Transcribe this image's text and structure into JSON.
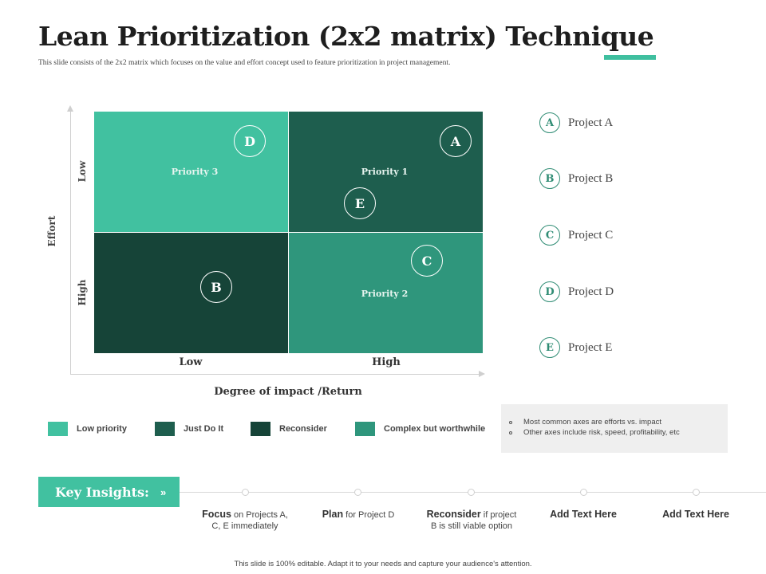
{
  "header": {
    "title": "Lean Prioritization (2x2 matrix) Technique",
    "subtitle": "This slide consists of the 2x2 matrix which focuses on the value and effort concept used to feature prioritization in project management.",
    "accent_color": "#3fbf9f"
  },
  "matrix": {
    "y_axis_title": "Effort",
    "y_tick_low": "Low",
    "y_tick_high": "High",
    "x_axis_title": "Degree of impact /Return",
    "x_tick_low": "Low",
    "x_tick_high": "High",
    "quadrants": {
      "top_left": {
        "label": "Priority 3",
        "color": "#41c1a0"
      },
      "top_right": {
        "label": "Priority 1",
        "color": "#1e5e4e"
      },
      "bottom_left": {
        "label": "",
        "color": "#164438"
      },
      "bottom_right": {
        "label": "Priority 2",
        "color": "#2f967c"
      }
    },
    "bubbles": {
      "a": "A",
      "b": "B",
      "c": "C",
      "d": "D",
      "e": "E"
    }
  },
  "projects": [
    {
      "letter": "A",
      "name": "Project A"
    },
    {
      "letter": "B",
      "name": "Project B"
    },
    {
      "letter": "C",
      "name": "Project C"
    },
    {
      "letter": "D",
      "name": "Project D"
    },
    {
      "letter": "E",
      "name": "Project E"
    }
  ],
  "legend": [
    {
      "label": "Low priority",
      "color": "#41c1a0"
    },
    {
      "label": "Just Do It",
      "color": "#1e5e4e"
    },
    {
      "label": "Reconsider",
      "color": "#164438"
    },
    {
      "label": "Complex but worthwhile",
      "color": "#2f967c"
    }
  ],
  "notes": [
    "Most common axes are efforts vs. impact",
    "Other axes include risk, speed, profitability, etc"
  ],
  "insights": {
    "label": "Key Insights:",
    "chevron": "»",
    "items": [
      {
        "bold": "Focus",
        "rest": "on Projects A, C, E immediately"
      },
      {
        "bold": "Plan",
        "rest": "for Project D"
      },
      {
        "bold": "Reconsider",
        "rest": "if project B is still viable option"
      },
      {
        "bold": "Add Text Here",
        "rest": ""
      },
      {
        "bold": "Add Text Here",
        "rest": ""
      }
    ]
  },
  "footer": "This slide is 100% editable. Adapt it to your needs and capture your audience's attention."
}
